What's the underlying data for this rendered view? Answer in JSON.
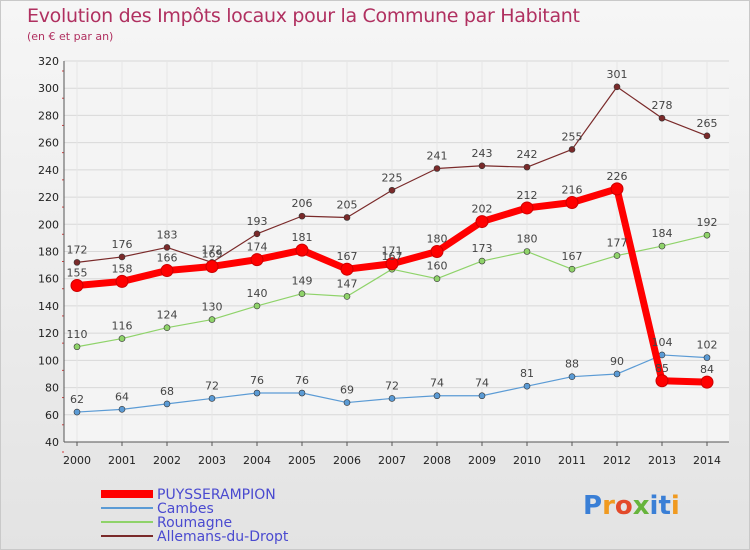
{
  "chart_data": {
    "type": "line",
    "title": "Evolution des Impôts locaux pour la Commune par Habitant",
    "subtitle": "(en € et par an)",
    "xlabel": "",
    "ylabel": "",
    "ylim": [
      40,
      320
    ],
    "ytick_step": 20,
    "grid": true,
    "legend_position": "bottom-left",
    "categories": [
      "2000",
      "2001",
      "2002",
      "2003",
      "2004",
      "2005",
      "2006",
      "2007",
      "2008",
      "2009",
      "2010",
      "2011",
      "2012",
      "2013",
      "2014"
    ],
    "series": [
      {
        "name": "PUYSSERAMPION",
        "color": "#ff0000",
        "emphasis": true,
        "values": [
          155,
          158,
          166,
          169,
          174,
          181,
          167,
          171,
          180,
          202,
          212,
          216,
          226,
          85,
          84
        ],
        "labels": [
          "155",
          "158",
          "166",
          "169",
          "174",
          "181",
          "167",
          "171",
          "180",
          "202",
          "212",
          "216",
          "226",
          "85",
          "84"
        ]
      },
      {
        "name": "Cambes",
        "color": "#5b9bd5",
        "emphasis": false,
        "values": [
          62,
          64,
          68,
          72,
          76,
          76,
          69,
          72,
          74,
          74,
          81,
          88,
          90,
          104,
          102
        ],
        "labels": [
          "62",
          "64",
          "68",
          "72",
          "76",
          "76",
          "69",
          "72",
          "74",
          "74",
          "81",
          "88",
          "90",
          "104",
          "102"
        ]
      },
      {
        "name": "Roumagne",
        "color": "#8fd36a",
        "emphasis": false,
        "values": [
          110,
          116,
          124,
          130,
          140,
          149,
          147,
          167,
          160,
          173,
          180,
          167,
          177,
          184,
          192
        ],
        "labels": [
          "110",
          "116",
          "124",
          "130",
          "140",
          "149",
          "147",
          "167",
          "160",
          "173",
          "180",
          "167",
          "177",
          "184",
          "192"
        ]
      },
      {
        "name": "Allemans-du-Dropt",
        "color": "#7a2a2a",
        "emphasis": false,
        "values": [
          172,
          176,
          183,
          172,
          193,
          206,
          205,
          225,
          241,
          243,
          242,
          255,
          301,
          278,
          265
        ],
        "labels": [
          "172",
          "176",
          "183",
          "172",
          "193",
          "206",
          "205",
          "225",
          "241",
          "243",
          "242",
          "255",
          "301",
          "278",
          "265"
        ]
      }
    ]
  },
  "logo": {
    "text": "Proxiti",
    "letters": [
      "P",
      "r",
      "o",
      "x",
      "i",
      "t",
      "i"
    ]
  }
}
